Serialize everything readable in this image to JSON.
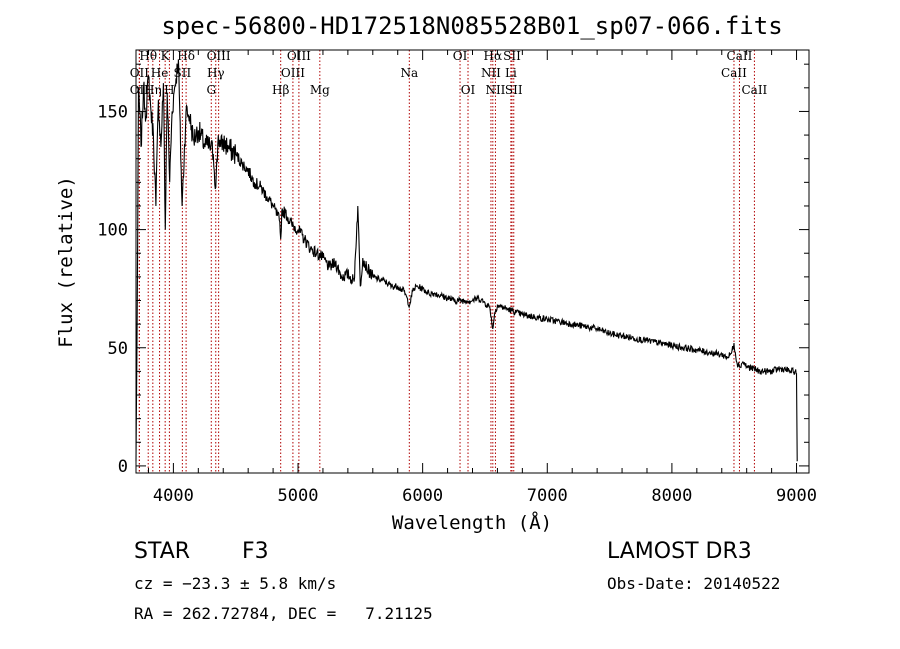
{
  "chart_data": {
    "type": "line",
    "title": "spec-56800-HD172518N085528B01_sp07-066.fits",
    "xlabel": "Wavelength (Å)",
    "ylabel": "Flux (relative)",
    "xlim": [
      3700,
      9100
    ],
    "ylim": [
      -3,
      176
    ],
    "x_ticks": [
      4000,
      5000,
      6000,
      7000,
      8000,
      9000
    ],
    "y_ticks": [
      0,
      50,
      100,
      150
    ],
    "grid": false,
    "series": [
      {
        "name": "flux",
        "x": [
          3700,
          3710,
          3720,
          3730,
          3740,
          3760,
          3780,
          3800,
          3820,
          3840,
          3860,
          3880,
          3900,
          3920,
          3935,
          3950,
          3970,
          3990,
          4010,
          4040,
          4070,
          4101,
          4130,
          4160,
          4200,
          4250,
          4300,
          4320,
          4340,
          4360,
          4380,
          4400,
          4450,
          4500,
          4550,
          4600,
          4650,
          4700,
          4750,
          4800,
          4850,
          4861,
          4870,
          4900,
          4950,
          5000,
          5050,
          5100,
          5150,
          5200,
          5250,
          5300,
          5350,
          5400,
          5450,
          5480,
          5500,
          5520,
          5550,
          5600,
          5650,
          5700,
          5750,
          5800,
          5850,
          5895,
          5920,
          5950,
          6000,
          6050,
          6100,
          6150,
          6200,
          6250,
          6300,
          6350,
          6400,
          6450,
          6500,
          6540,
          6562,
          6580,
          6600,
          6650,
          6700,
          6750,
          6800,
          6900,
          7000,
          7100,
          7200,
          7300,
          7400,
          7500,
          7600,
          7700,
          7800,
          7900,
          8000,
          8100,
          8200,
          8300,
          8400,
          8450,
          8480,
          8498,
          8520,
          8542,
          8570,
          8600,
          8662,
          8700,
          8750,
          8800,
          8850,
          8900,
          8950,
          8990,
          9000,
          9005
        ],
        "values": [
          2,
          65,
          160,
          150,
          135,
          160,
          148,
          165,
          150,
          140,
          110,
          155,
          135,
          162,
          100,
          158,
          120,
          150,
          160,
          172,
          110,
          150,
          148,
          138,
          142,
          136,
          135,
          132,
          118,
          140,
          135,
          137,
          134,
          132,
          128,
          125,
          120,
          118,
          114,
          110,
          104,
          96,
          108,
          107,
          102,
          100,
          96,
          92,
          90,
          88,
          84,
          86,
          80,
          81,
          78,
          110,
          76,
          88,
          84,
          80,
          79,
          78,
          76,
          76,
          74,
          68,
          74,
          76,
          75,
          73,
          73,
          72,
          71,
          70,
          70,
          70,
          70,
          71,
          69,
          67,
          58,
          65,
          68,
          67,
          66,
          65,
          64,
          63,
          62,
          61,
          60,
          59,
          58,
          56,
          55,
          54,
          53,
          52,
          51,
          50,
          49,
          48,
          47,
          46,
          48,
          52,
          44,
          42,
          44,
          42,
          41,
          40,
          40,
          40,
          41,
          41,
          40,
          40,
          39,
          2
        ]
      }
    ],
    "lines": [
      {
        "label": "Hθ",
        "wavelength": 3798,
        "row": 0
      },
      {
        "label": "OII",
        "wavelength": 3727,
        "row": 1
      },
      {
        "label": "OII",
        "wavelength": 3727,
        "row": 2
      },
      {
        "label": "Hη",
        "wavelength": 3835,
        "row": 2
      },
      {
        "label": "He",
        "wavelength": 3889,
        "row": 1
      },
      {
        "label": "K",
        "wavelength": 3934,
        "row": 0
      },
      {
        "label": "H",
        "wavelength": 3968,
        "row": 2
      },
      {
        "label": "SII",
        "wavelength": 4072,
        "row": 1
      },
      {
        "label": "Hδ",
        "wavelength": 4102,
        "row": 0
      },
      {
        "label": "OIII",
        "wavelength": 4363,
        "row": 0
      },
      {
        "label": "Hγ",
        "wavelength": 4340,
        "row": 1
      },
      {
        "label": "G",
        "wavelength": 4304,
        "row": 2
      },
      {
        "label": "Hβ",
        "wavelength": 4861,
        "row": 2
      },
      {
        "label": "OIII",
        "wavelength": 5007,
        "row": 0
      },
      {
        "label": "OIII",
        "wavelength": 4959,
        "row": 1
      },
      {
        "label": "Mg",
        "wavelength": 5175,
        "row": 2
      },
      {
        "label": "Na",
        "wavelength": 5893,
        "row": 1
      },
      {
        "label": "OI",
        "wavelength": 6300,
        "row": 0
      },
      {
        "label": "OI",
        "wavelength": 6364,
        "row": 2
      },
      {
        "label": "Hα",
        "wavelength": 6563,
        "row": 0
      },
      {
        "label": "NII",
        "wavelength": 6548,
        "row": 1
      },
      {
        "label": "NII",
        "wavelength": 6584,
        "row": 2
      },
      {
        "label": "SII",
        "wavelength": 6717,
        "row": 0
      },
      {
        "label": "Li",
        "wavelength": 6708,
        "row": 1
      },
      {
        "label": "SII",
        "wavelength": 6731,
        "row": 2
      },
      {
        "label": "CaII",
        "wavelength": 8542,
        "row": 0
      },
      {
        "label": "CaII",
        "wavelength": 8498,
        "row": 1
      },
      {
        "label": "CaII",
        "wavelength": 8662,
        "row": 2
      }
    ]
  },
  "info": {
    "object_class": "STAR",
    "subclass": "F3",
    "survey": "LAMOST DR3",
    "cz": "cz = −23.3 ± 5.8 km/s",
    "obs_date": "Obs-Date: 20140522",
    "coords": "RA = 262.72784, DEC =   7.21125"
  }
}
